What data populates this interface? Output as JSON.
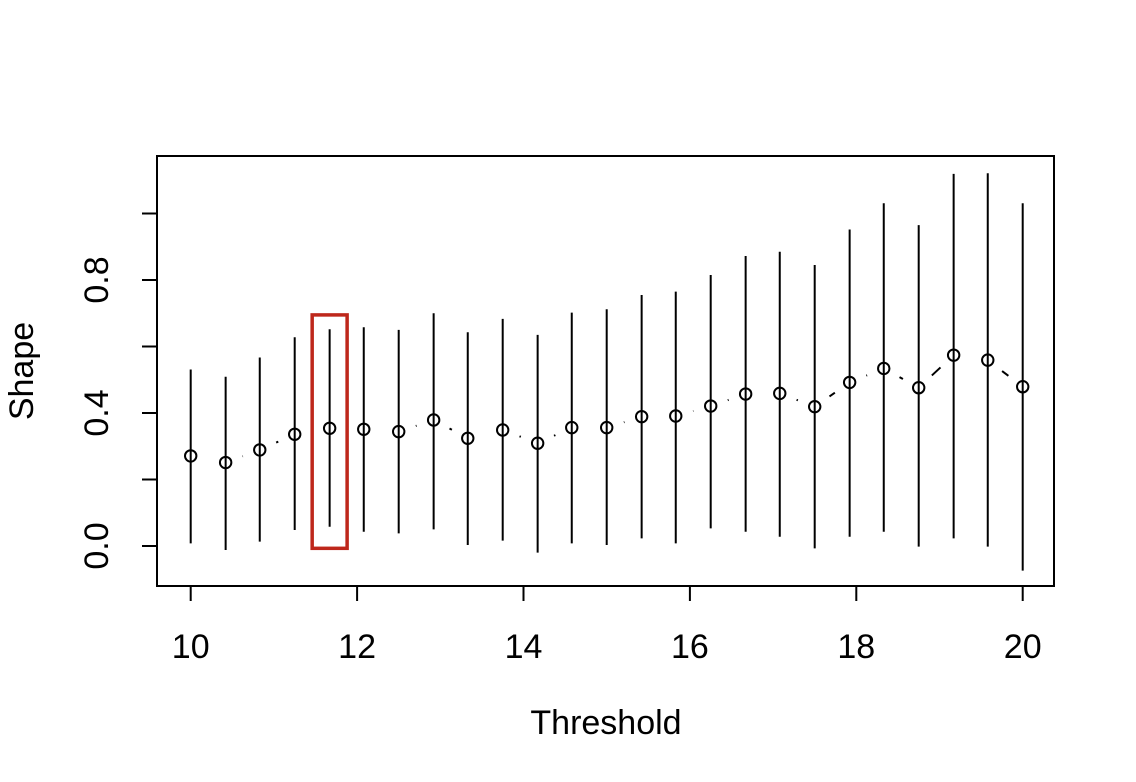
{
  "chart_data": {
    "type": "scatter",
    "title": "",
    "xlabel": "Threshold",
    "ylabel": "Shape",
    "grid": false,
    "legend": "none",
    "xlim": [
      9.6,
      20.4
    ],
    "ylim": [
      -0.12,
      1.17
    ],
    "x_ticks": [
      {
        "value": 10,
        "label": "10"
      },
      {
        "value": 12,
        "label": "12"
      },
      {
        "value": 14,
        "label": "14"
      },
      {
        "value": 16,
        "label": "16"
      },
      {
        "value": 18,
        "label": "18"
      },
      {
        "value": 20,
        "label": "20"
      }
    ],
    "y_ticks_minor": [
      0.0,
      0.2,
      0.4,
      0.6,
      0.8,
      1.0
    ],
    "y_ticks_labeled": [
      {
        "value": 0.0,
        "label": "0.0"
      },
      {
        "value": 0.4,
        "label": "0.4"
      },
      {
        "value": 0.8,
        "label": "0.8"
      }
    ],
    "marker": "open-circle",
    "error_bars": "vertical-ci",
    "connector": "segments-between-points",
    "points": [
      {
        "threshold": 10.0,
        "shape": 0.271,
        "ci_low": 0.008,
        "ci_high": 0.531
      },
      {
        "threshold": 10.42,
        "shape": 0.251,
        "ci_low": -0.012,
        "ci_high": 0.509
      },
      {
        "threshold": 10.83,
        "shape": 0.289,
        "ci_low": 0.013,
        "ci_high": 0.567
      },
      {
        "threshold": 11.25,
        "shape": 0.336,
        "ci_low": 0.048,
        "ci_high": 0.628
      },
      {
        "threshold": 11.67,
        "shape": 0.354,
        "ci_low": 0.058,
        "ci_high": 0.652
      },
      {
        "threshold": 12.08,
        "shape": 0.351,
        "ci_low": 0.043,
        "ci_high": 0.658
      },
      {
        "threshold": 12.5,
        "shape": 0.344,
        "ci_low": 0.038,
        "ci_high": 0.65
      },
      {
        "threshold": 12.92,
        "shape": 0.379,
        "ci_low": 0.05,
        "ci_high": 0.7
      },
      {
        "threshold": 13.33,
        "shape": 0.324,
        "ci_low": 0.003,
        "ci_high": 0.643
      },
      {
        "threshold": 13.75,
        "shape": 0.349,
        "ci_low": 0.016,
        "ci_high": 0.683
      },
      {
        "threshold": 14.17,
        "shape": 0.309,
        "ci_low": -0.02,
        "ci_high": 0.635
      },
      {
        "threshold": 14.58,
        "shape": 0.356,
        "ci_low": 0.008,
        "ci_high": 0.702
      },
      {
        "threshold": 15.0,
        "shape": 0.356,
        "ci_low": 0.003,
        "ci_high": 0.712
      },
      {
        "threshold": 15.42,
        "shape": 0.389,
        "ci_low": 0.023,
        "ci_high": 0.755
      },
      {
        "threshold": 15.83,
        "shape": 0.391,
        "ci_low": 0.008,
        "ci_high": 0.765
      },
      {
        "threshold": 16.25,
        "shape": 0.421,
        "ci_low": 0.053,
        "ci_high": 0.815
      },
      {
        "threshold": 16.67,
        "shape": 0.457,
        "ci_low": 0.043,
        "ci_high": 0.872
      },
      {
        "threshold": 17.08,
        "shape": 0.459,
        "ci_low": 0.028,
        "ci_high": 0.885
      },
      {
        "threshold": 17.5,
        "shape": 0.419,
        "ci_low": -0.007,
        "ci_high": 0.845
      },
      {
        "threshold": 17.92,
        "shape": 0.492,
        "ci_low": 0.028,
        "ci_high": 0.952
      },
      {
        "threshold": 18.33,
        "shape": 0.534,
        "ci_low": 0.043,
        "ci_high": 1.031
      },
      {
        "threshold": 18.75,
        "shape": 0.476,
        "ci_low": -0.002,
        "ci_high": 0.965
      },
      {
        "threshold": 19.17,
        "shape": 0.574,
        "ci_low": 0.023,
        "ci_high": 1.119
      },
      {
        "threshold": 19.58,
        "shape": 0.559,
        "ci_low": -0.002,
        "ci_high": 1.121
      },
      {
        "threshold": 20.0,
        "shape": 0.479,
        "ci_low": -0.074,
        "ci_high": 1.031
      }
    ],
    "highlight_box": {
      "threshold_range": [
        11.46,
        11.88
      ],
      "value_range": [
        -0.007,
        0.695
      ],
      "color": "#BE271B"
    },
    "colors": {
      "foreground": "#000000",
      "background": "#FFFFFF",
      "highlight": "#BE271B"
    }
  }
}
